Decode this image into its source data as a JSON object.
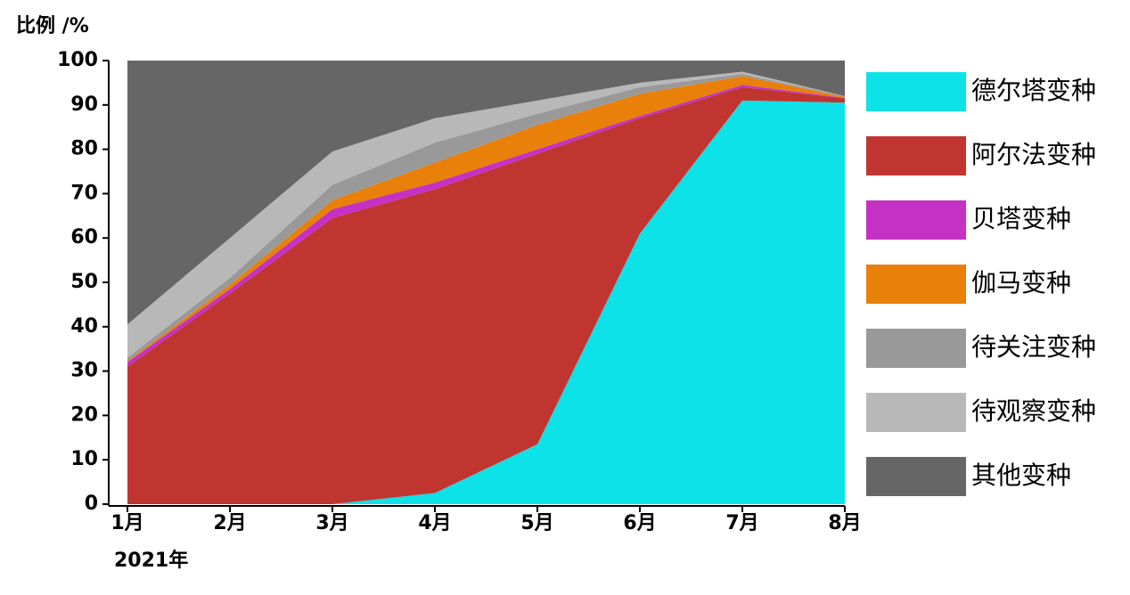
{
  "chart_data": {
    "type": "stacked-area",
    "y_label": "比例 /%",
    "x_label": "2021年",
    "categories": [
      "1月",
      "2月",
      "3月",
      "4月",
      "5月",
      "6月",
      "7月",
      "8月"
    ],
    "ylim": [
      0,
      100
    ],
    "yticks": [
      0,
      10,
      20,
      30,
      40,
      50,
      60,
      70,
      80,
      90,
      100
    ],
    "series": [
      {
        "name": "德尔塔变种",
        "color": "#0ce2e8",
        "values": [
          0,
          0,
          0,
          2.5,
          13.5,
          61,
          91,
          90.5
        ]
      },
      {
        "name": "阿尔法变种",
        "color": "#c03530",
        "values": [
          31,
          47.5,
          64.5,
          68.5,
          65.5,
          26,
          3,
          1
        ]
      },
      {
        "name": "贝塔变种",
        "color": "#c431c4",
        "values": [
          1,
          1,
          2,
          1.5,
          1,
          0.5,
          0.5,
          0.1
        ]
      },
      {
        "name": "伽马变种",
        "color": "#e8800a",
        "values": [
          0.3,
          1,
          2,
          4.5,
          5.5,
          5,
          2,
          0.2
        ]
      },
      {
        "name": "待关注变种",
        "color": "#999999",
        "values": [
          0.7,
          1.5,
          3.5,
          4.5,
          2.5,
          1.5,
          0.5,
          0.2
        ]
      },
      {
        "name": "待观察变种",
        "color": "#b8b8b8",
        "values": [
          7.5,
          9,
          7.5,
          5.5,
          3,
          1,
          0.5,
          0
        ]
      },
      {
        "name": "其他变种",
        "color": "#666666",
        "values": [
          59.5,
          40,
          20.5,
          13,
          9,
          5,
          2.5,
          8
        ]
      }
    ]
  }
}
